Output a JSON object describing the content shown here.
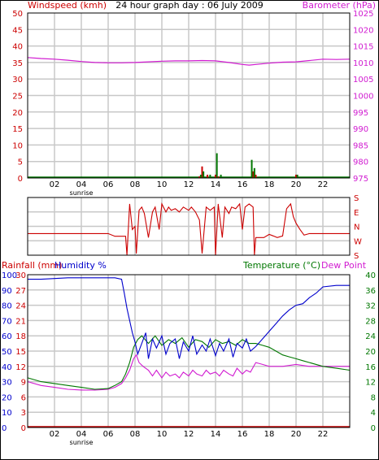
{
  "colors": {
    "windspeed": "#cc0000",
    "gust": "#007700",
    "barometer": "#d11bd1",
    "direction": "#cc0000",
    "rainfall": "#cc0000",
    "humidity": "#0000cc",
    "temperature": "#007700",
    "dewpoint": "#d11bd1",
    "grid": "#c8c8c8",
    "frame": "#000000"
  },
  "chart_data": [
    {
      "type": "line",
      "title": "24 hour graph day : 06 July 2009",
      "ylabel_left": "Windspeed (kmh)",
      "ylabel_right": "Barometer (hPa)",
      "x_ticks": [
        "02",
        "04",
        "06",
        "08",
        "10",
        "12",
        "14",
        "16",
        "18",
        "20",
        "22"
      ],
      "x_annotation": "sunrise",
      "x_annotation_at": 4,
      "xlim": [
        0,
        24
      ],
      "ylim_left": [
        0,
        50
      ],
      "ylim_right": [
        975,
        1025
      ],
      "yticks_left": [
        "0",
        "5",
        "10",
        "15",
        "20",
        "25",
        "30",
        "35",
        "40",
        "45",
        "50"
      ],
      "yticks_right": [
        "975",
        "980",
        "985",
        "990",
        "995",
        "1000",
        "1005",
        "1010",
        "1015",
        "1020",
        "1025"
      ],
      "grid": true,
      "series": [
        {
          "name": "Barometer (hPa)",
          "axis": "right",
          "x": [
            0,
            1,
            2,
            3,
            4,
            5,
            6,
            7,
            8,
            9,
            10,
            11,
            12,
            13,
            14,
            15,
            16,
            16.5,
            17,
            18,
            19,
            20,
            21,
            22,
            23,
            24
          ],
          "values": [
            1011.5,
            1011.2,
            1011.0,
            1010.7,
            1010.3,
            1010.0,
            1009.9,
            1009.9,
            1010.0,
            1010.2,
            1010.4,
            1010.5,
            1010.5,
            1010.6,
            1010.5,
            1010.0,
            1009.4,
            1009.2,
            1009.4,
            1009.8,
            1010.1,
            1010.2,
            1010.6,
            1011.0,
            1010.9,
            1011.0
          ]
        },
        {
          "name": "Windspeed (kmh)",
          "axis": "left",
          "x": [
            12.8,
            13.0,
            13.4,
            14.0,
            14.2,
            16.8,
            17.0,
            20.0
          ],
          "values": [
            0.5,
            3.5,
            1.0,
            1.0,
            0.5,
            2.0,
            1.0,
            1.0
          ]
        },
        {
          "name": "Gust (kmh)",
          "axis": "left",
          "x": [
            12.9,
            13.1,
            13.6,
            14.1,
            14.4,
            16.7,
            16.9,
            20.1
          ],
          "values": [
            1.0,
            2.0,
            1.0,
            7.5,
            1.0,
            5.5,
            3.0,
            1.0
          ]
        }
      ]
    },
    {
      "type": "line",
      "ylabel_right": [
        "S",
        "E",
        "N",
        "W",
        "S"
      ],
      "xlim": [
        0,
        24
      ],
      "ylim": [
        0,
        360
      ],
      "grid": true,
      "series": [
        {
          "name": "Wind direction",
          "x": [
            0,
            0.3,
            1,
            2,
            3,
            4,
            5,
            6,
            6.5,
            7,
            7.3,
            7.4,
            7.6,
            7.8,
            8.0,
            8.1,
            8.3,
            8.5,
            8.7,
            9.0,
            9.3,
            9.5,
            9.8,
            10.0,
            10.3,
            10.5,
            10.7,
            11.0,
            11.3,
            11.6,
            12.0,
            12.2,
            12.5,
            12.8,
            13.0,
            13.3,
            13.6,
            13.9,
            14.0,
            14.2,
            14.5,
            14.7,
            15.0,
            15.2,
            15.5,
            15.8,
            16.0,
            16.2,
            16.5,
            16.8,
            16.9,
            17.0,
            17.3,
            17.6,
            18.0,
            18.3,
            18.6,
            19.0,
            19.3,
            19.6,
            19.8,
            20.0,
            20.3,
            20.6,
            21.0,
            21.5,
            22.0,
            23.0,
            24.0
          ],
          "values": [
            225,
            225,
            225,
            225,
            225,
            225,
            225,
            225,
            242,
            242,
            242,
            360,
            40,
            200,
            180,
            350,
            80,
            60,
            100,
            250,
            90,
            60,
            200,
            40,
            90,
            60,
            80,
            70,
            90,
            60,
            80,
            60,
            90,
            140,
            350,
            60,
            80,
            60,
            360,
            40,
            250,
            60,
            100,
            60,
            70,
            40,
            200,
            60,
            40,
            60,
            360,
            250,
            250,
            250,
            230,
            240,
            250,
            240,
            70,
            40,
            120,
            160,
            200,
            235,
            225,
            225,
            225,
            225,
            225
          ]
        }
      ]
    },
    {
      "type": "line",
      "ylabel_left": [
        "Rainfall (mm)",
        "Humidity %"
      ],
      "ylabel_right": [
        "Temperature (°C)",
        "Dew Point"
      ],
      "x_ticks": [
        "02",
        "04",
        "06",
        "08",
        "10",
        "12",
        "14",
        "16",
        "18",
        "20",
        "22"
      ],
      "x_annotation": "sunrise",
      "x_annotation_at": 4,
      "xlim": [
        0,
        24
      ],
      "ylim_rainfall": [
        0,
        30
      ],
      "ylim_humidity": [
        0,
        100
      ],
      "ylim_temperature": [
        0,
        40
      ],
      "yticks_humidity": [
        "0",
        "10",
        "20",
        "30",
        "40",
        "50",
        "60",
        "70",
        "80",
        "90",
        "100"
      ],
      "yticks_rainfall": [
        "0",
        "3",
        "6",
        "9",
        "12",
        "15",
        "18",
        "21",
        "24",
        "27",
        "30"
      ],
      "yticks_temperature": [
        "0",
        "4",
        "8",
        "12",
        "16",
        "20",
        "24",
        "28",
        "32",
        "36",
        "40"
      ],
      "grid": true,
      "series": [
        {
          "name": "Humidity %",
          "axis": "humidity",
          "x": [
            0,
            1,
            2,
            3,
            4,
            5,
            6,
            6.5,
            7.0,
            7.2,
            7.4,
            7.6,
            7.8,
            8.0,
            8.2,
            8.5,
            8.8,
            9.0,
            9.3,
            9.6,
            10.0,
            10.3,
            10.6,
            11.0,
            11.3,
            11.6,
            12.0,
            12.3,
            12.6,
            13.0,
            13.3,
            13.6,
            14.0,
            14.3,
            14.6,
            15.0,
            15.3,
            15.6,
            16.0,
            16.3,
            16.6,
            17.0,
            17.5,
            18.0,
            18.5,
            19.0,
            19.5,
            20.0,
            20.5,
            21.0,
            21.5,
            22.0,
            23.0,
            24.0
          ],
          "values": [
            97,
            97,
            97.5,
            98,
            98,
            98,
            98,
            98,
            97,
            88,
            78,
            70,
            62,
            56,
            48,
            55,
            62,
            45,
            58,
            52,
            60,
            48,
            55,
            58,
            45,
            56,
            50,
            60,
            48,
            54,
            50,
            58,
            47,
            55,
            50,
            58,
            46,
            55,
            52,
            58,
            50,
            53,
            58,
            63,
            68,
            73,
            77,
            80,
            81,
            85,
            88,
            92,
            93,
            93
          ]
        },
        {
          "name": "Temperature (°C)",
          "axis": "temperature",
          "x": [
            0,
            1,
            2,
            3,
            4,
            5,
            6,
            6.5,
            7.0,
            7.3,
            7.6,
            7.9,
            8.2,
            8.5,
            9.0,
            9.5,
            10.0,
            10.5,
            11.0,
            11.5,
            12.0,
            12.5,
            13.0,
            13.5,
            14.0,
            14.5,
            15.0,
            15.5,
            16.0,
            16.5,
            17.0,
            17.5,
            18.0,
            18.5,
            19.0,
            19.5,
            20.0,
            20.5,
            21.0,
            22.0,
            23.0,
            24.0
          ],
          "values": [
            13,
            12,
            11.5,
            11,
            10.5,
            10,
            10.2,
            11,
            12,
            14,
            17,
            21,
            23,
            24,
            22,
            24,
            21.5,
            23,
            22,
            23.5,
            21,
            23,
            22.5,
            21,
            23,
            22,
            22.5,
            21.5,
            23,
            22,
            22,
            21.5,
            21,
            20,
            19,
            18.5,
            18,
            17.5,
            17,
            16,
            15.5,
            15
          ]
        },
        {
          "name": "Dew Point",
          "axis": "temperature",
          "x": [
            0,
            1,
            2,
            3,
            4,
            5,
            6,
            6.5,
            7.0,
            7.3,
            7.6,
            7.9,
            8.1,
            8.3,
            8.6,
            9.0,
            9.3,
            9.6,
            10.0,
            10.3,
            10.6,
            11.0,
            11.3,
            11.6,
            12.0,
            12.3,
            12.6,
            13.0,
            13.3,
            13.6,
            14.0,
            14.3,
            14.6,
            15.0,
            15.3,
            15.6,
            16.0,
            16.3,
            16.6,
            17.0,
            17.5,
            18.0,
            19.0,
            20.0,
            21.0,
            22.0,
            23.0,
            24.0
          ],
          "values": [
            12,
            11,
            10.5,
            10,
            9.8,
            9.8,
            10,
            10.5,
            11.5,
            13,
            15,
            18,
            19,
            17,
            16,
            15,
            13.5,
            15,
            13,
            14.5,
            13.5,
            14,
            13,
            14.5,
            13.5,
            15,
            14,
            13.5,
            15,
            14,
            14.5,
            13.5,
            15,
            14,
            13.5,
            15.5,
            14,
            15,
            14.5,
            17,
            16.5,
            16,
            16,
            16.5,
            16,
            16,
            16,
            16
          ]
        },
        {
          "name": "Rainfall (mm)",
          "axis": "rainfall",
          "x": [
            0,
            24
          ],
          "values": [
            0,
            0
          ]
        }
      ]
    }
  ]
}
